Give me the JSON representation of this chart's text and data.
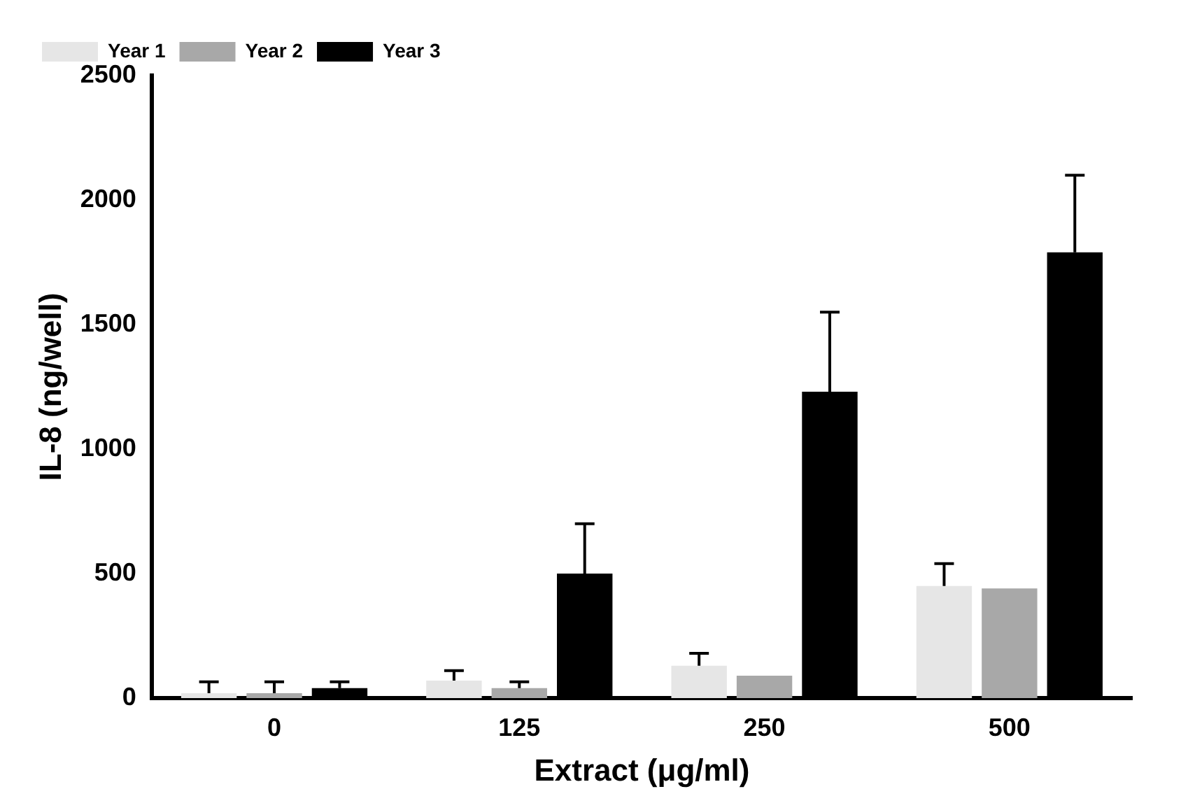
{
  "chart_data": {
    "type": "bar",
    "xlabel": "Extract (μg/ml)",
    "ylabel": "IL-8 (ng/well)",
    "categories": [
      "0",
      "125",
      "250",
      "500"
    ],
    "series": [
      {
        "name": "Year 1",
        "color": "#e6e6e6",
        "values": [
          20,
          70,
          130,
          450
        ],
        "errors": [
          45,
          40,
          50,
          90
        ]
      },
      {
        "name": "Year 2",
        "color": "#a8a8a8",
        "values": [
          20,
          40,
          90,
          440
        ],
        "errors": [
          45,
          25,
          null,
          null
        ]
      },
      {
        "name": "Year 3",
        "color": "#000000",
        "values": [
          40,
          500,
          1230,
          1790
        ],
        "errors": [
          25,
          200,
          320,
          310
        ]
      }
    ],
    "ylim": [
      0,
      2500
    ],
    "yticks": [
      0,
      500,
      1000,
      1500,
      2000,
      2500
    ],
    "grid": false,
    "legend": "top left"
  }
}
